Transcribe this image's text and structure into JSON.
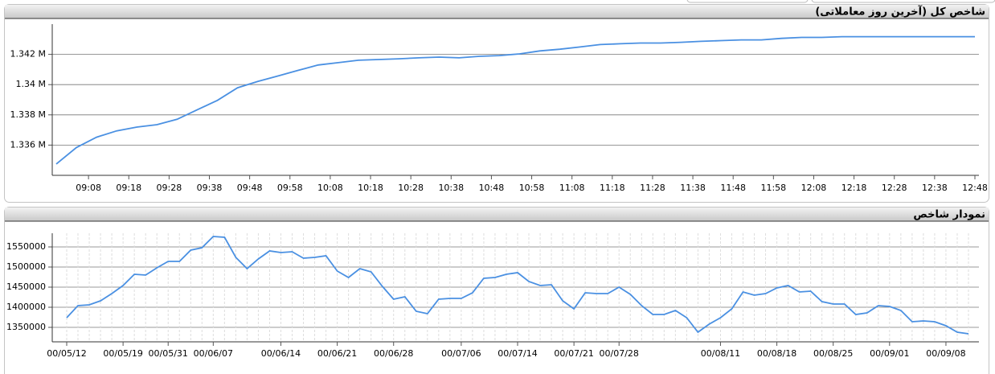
{
  "chart_data": [
    {
      "type": "line",
      "title": "شاخص کل (آخرین روز معاملاتی)",
      "color": "#4a90e2",
      "grid": true,
      "x": [
        "09:00",
        "09:05",
        "09:10",
        "09:15",
        "09:20",
        "09:25",
        "09:30",
        "09:35",
        "09:40",
        "09:45",
        "09:50",
        "09:55",
        "10:00",
        "10:05",
        "10:10",
        "10:15",
        "10:20",
        "10:25",
        "10:30",
        "10:35",
        "10:40",
        "10:45",
        "10:50",
        "10:55",
        "11:00",
        "11:05",
        "11:10",
        "11:15",
        "11:20",
        "11:25",
        "11:30",
        "11:35",
        "11:40",
        "11:45",
        "11:50",
        "11:55",
        "12:00",
        "12:05",
        "12:10",
        "12:15",
        "12:20",
        "12:25",
        "12:30",
        "12:35",
        "12:40",
        "12:45",
        "12:48"
      ],
      "values": [
        1334750,
        1335840,
        1336520,
        1336940,
        1337190,
        1337350,
        1337710,
        1338340,
        1338960,
        1339790,
        1340210,
        1340570,
        1340940,
        1341300,
        1341450,
        1341610,
        1341660,
        1341710,
        1341770,
        1341820,
        1341770,
        1341870,
        1341920,
        1342030,
        1342230,
        1342340,
        1342490,
        1342650,
        1342700,
        1342750,
        1342750,
        1342800,
        1342860,
        1342910,
        1342960,
        1342960,
        1343060,
        1343120,
        1343120,
        1343170,
        1343170,
        1343170,
        1343170,
        1343170,
        1343170,
        1343170,
        1343170
      ],
      "xlim": [
        "08:59",
        "12:49"
      ],
      "xticks": [
        "09:08",
        "09:18",
        "09:28",
        "09:38",
        "09:48",
        "09:58",
        "10:08",
        "10:18",
        "10:28",
        "10:38",
        "10:48",
        "10:58",
        "11:08",
        "11:18",
        "11:28",
        "11:38",
        "11:48",
        "11:58",
        "12:08",
        "12:18",
        "12:28",
        "12:38",
        "12:48"
      ],
      "ylim": [
        1334000,
        1344000
      ],
      "yticks": [
        {
          "value": 1336000,
          "label": "1.336 M"
        },
        {
          "value": 1338000,
          "label": "1.338 M"
        },
        {
          "value": 1340000,
          "label": "1.34 M"
        },
        {
          "value": 1342000,
          "label": "1.342 M"
        }
      ]
    },
    {
      "type": "line",
      "title": "نمودار شاخص",
      "color": "#4a90e2",
      "grid": true,
      "categories": [
        "00/05/12",
        null,
        null,
        null,
        null,
        "00/05/19",
        null,
        null,
        null,
        "00/05/31",
        null,
        null,
        null,
        "00/06/07",
        null,
        null,
        null,
        null,
        null,
        "00/06/14",
        null,
        null,
        null,
        null,
        "00/06/21",
        null,
        null,
        null,
        null,
        "00/06/28",
        null,
        null,
        null,
        null,
        null,
        "00/07/06",
        null,
        null,
        null,
        null,
        "00/07/14",
        null,
        null,
        null,
        null,
        "00/07/21",
        null,
        null,
        null,
        "00/07/28",
        null,
        null,
        null,
        null,
        null,
        null,
        null,
        null,
        "00/08/11",
        null,
        null,
        null,
        null,
        "00/08/18",
        null,
        null,
        null,
        null,
        "00/08/25",
        null,
        null,
        null,
        null,
        "00/09/01",
        null,
        null,
        null,
        null,
        "00/09/08",
        null,
        null
      ],
      "values": [
        1374000,
        1404000,
        1406000,
        1416000,
        1434000,
        1454000,
        1482000,
        1480000,
        1498000,
        1514000,
        1514000,
        1542000,
        1548000,
        1576000,
        1574000,
        1524000,
        1496000,
        1520000,
        1540000,
        1536000,
        1538000,
        1522000,
        1524000,
        1528000,
        1490000,
        1474000,
        1496000,
        1488000,
        1452000,
        1420000,
        1426000,
        1390000,
        1384000,
        1420000,
        1422000,
        1422000,
        1436000,
        1472000,
        1474000,
        1482000,
        1486000,
        1464000,
        1454000,
        1456000,
        1416000,
        1396000,
        1436000,
        1434000,
        1434000,
        1450000,
        1432000,
        1404000,
        1382000,
        1382000,
        1392000,
        1374000,
        1338000,
        1358000,
        1374000,
        1396000,
        1438000,
        1430000,
        1434000,
        1448000,
        1454000,
        1438000,
        1440000,
        1414000,
        1408000,
        1408000,
        1382000,
        1386000,
        1404000,
        1402000,
        1392000,
        1364000,
        1366000,
        1364000,
        1354000,
        1338000,
        1334000
      ],
      "ylim": [
        1314000,
        1584000
      ],
      "yticks": [
        1350000,
        1400000,
        1450000,
        1500000,
        1550000
      ]
    }
  ]
}
